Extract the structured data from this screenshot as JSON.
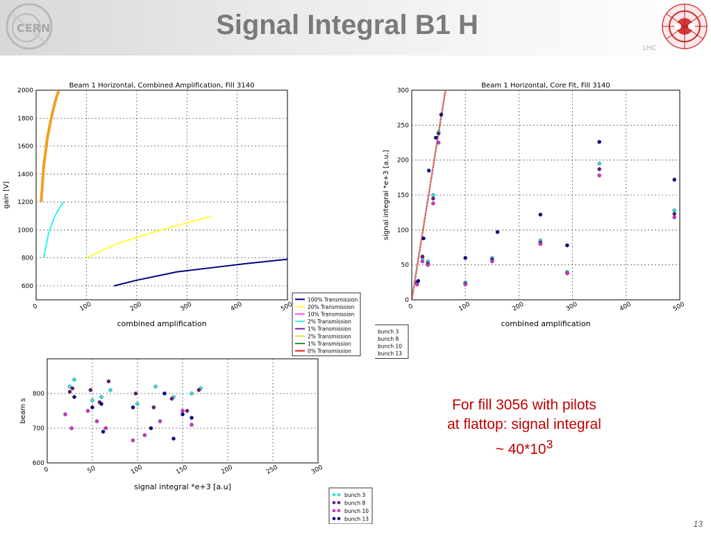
{
  "slide": {
    "title": "Signal Integral B1 H",
    "lhc_label": "LHC",
    "note_lines": [
      "For fill 3056 with pilots",
      "at flattop: signal integral"
    ],
    "note_value_prefix": "~ 40*10",
    "note_value_exponent": "3",
    "page_number": "13"
  },
  "chart_data": [
    {
      "type": "line",
      "title": "Beam 1 Horizontal, Combined Amplification, Fill 3140",
      "xlabel": "combined amplification",
      "ylabel": "gain [V]",
      "xlim": [
        0,
        500
      ],
      "ylim": [
        500,
        2000
      ],
      "xticks": [
        "0",
        "100",
        "200",
        "300",
        "400",
        "500"
      ],
      "yticks": [
        "2000",
        "1800",
        "1600",
        "1400",
        "1200",
        "1000",
        "800",
        "600"
      ],
      "grid": true,
      "legend_position": "outside-bottom-right",
      "series": [
        {
          "name": "100% Transmission",
          "color": "#000080",
          "x": [
            155,
            200,
            280,
            350,
            420,
            500
          ],
          "y": [
            600,
            640,
            700,
            730,
            760,
            790
          ]
        },
        {
          "name": "20% Transmission",
          "color": "#ffff33",
          "x": [
            100,
            160,
            230,
            290,
            350
          ],
          "y": [
            800,
            900,
            980,
            1040,
            1100
          ]
        },
        {
          "name": "10% Transmission",
          "color": "#ff44ff",
          "x": [],
          "y": []
        },
        {
          "name": "2% Transmission",
          "color": "#33eeee",
          "x": [
            15,
            25,
            35,
            45,
            55
          ],
          "y": [
            800,
            980,
            1080,
            1150,
            1200
          ]
        },
        {
          "name": "1% Transmission",
          "color": "#7a1fa2",
          "x": [],
          "y": []
        },
        {
          "name": "2% Transmission",
          "color": "#e2e24a",
          "x": [],
          "y": []
        },
        {
          "name": "1% Transmission",
          "color": "#2e8b2e",
          "x": [],
          "y": []
        },
        {
          "name": "0% Transmission",
          "color": "#ff1010",
          "x": [],
          "y": []
        },
        {
          "name": "",
          "color": "#f0a020",
          "x": [
            10,
            15,
            22,
            30,
            38,
            45
          ],
          "y": [
            1200,
            1450,
            1650,
            1800,
            1920,
            2000
          ]
        }
      ]
    },
    {
      "type": "scatter",
      "title": "Beam 1 Horizontal, Core Fit, Fill 3140",
      "xlabel": "combined amplification",
      "ylabel": "signal integral *e+3 [a.u.]",
      "xlim": [
        0,
        500
      ],
      "ylim": [
        0,
        300
      ],
      "xticks": [
        "0",
        "100",
        "200",
        "300",
        "400",
        "500"
      ],
      "yticks": [
        "300",
        "250",
        "200",
        "150",
        "100",
        "50",
        "0"
      ],
      "grid": true,
      "legend_position": "outside-bottom-left",
      "fit_line": {
        "color": "#b22222",
        "x": [
          0,
          65
        ],
        "y": [
          0,
          310
        ]
      },
      "series": [
        {
          "name": "bunch 3",
          "color": "#33dddd",
          "x": [
            10,
            20,
            30,
            40,
            50,
            100,
            150,
            240,
            290,
            350,
            490
          ],
          "y": [
            25,
            60,
            55,
            150,
            240,
            25,
            60,
            85,
            40,
            195,
            128
          ]
        },
        {
          "name": "bunch 8",
          "color": "#6a1b7a",
          "x": [
            10,
            20,
            30,
            40,
            50,
            100,
            150,
            240,
            290,
            350,
            490
          ],
          "y": [
            25,
            62,
            52,
            145,
            238,
            23,
            58,
            82,
            38,
            187,
            123
          ]
        },
        {
          "name": "bunch 10",
          "color": "#cc33cc",
          "x": [
            10,
            20,
            30,
            40,
            50,
            100,
            150,
            240,
            290,
            350,
            490
          ],
          "y": [
            22,
            55,
            50,
            138,
            225,
            22,
            55,
            80,
            38,
            178,
            118
          ]
        },
        {
          "name": "bunch 13",
          "color": "#00008b",
          "x": [
            12,
            22,
            32,
            45,
            55,
            100,
            160,
            240,
            290,
            350,
            490
          ],
          "y": [
            27,
            88,
            185,
            232,
            265,
            60,
            97,
            122,
            78,
            226,
            172
          ]
        }
      ]
    },
    {
      "type": "scatter",
      "title": "",
      "xlabel": "signal integral *e+3 [a.u]",
      "ylabel": "beam s",
      "xlim": [
        0,
        300
      ],
      "ylim": [
        600,
        900
      ],
      "xticks": [
        "0",
        "50",
        "100",
        "150",
        "200",
        "250",
        "300"
      ],
      "yticks": [
        "800",
        "700",
        "600"
      ],
      "grid": true,
      "legend_position": "outside-bottom-left",
      "series": [
        {
          "name": "bunch 3",
          "color": "#33dddd",
          "x": [
            25,
            30,
            50,
            60,
            70,
            100,
            120,
            140,
            160,
            170
          ],
          "y": [
            820,
            840,
            780,
            790,
            810,
            770,
            820,
            790,
            800,
            815
          ]
        },
        {
          "name": "bunch 8",
          "color": "#6a1b7a",
          "x": [
            25,
            28,
            48,
            58,
            68,
            98,
            118,
            138,
            155,
            168
          ],
          "y": [
            805,
            815,
            810,
            775,
            835,
            800,
            760,
            785,
            750,
            810
          ]
        },
        {
          "name": "bunch 10",
          "color": "#cc33cc",
          "x": [
            20,
            27,
            45,
            55,
            65,
            95,
            108,
            125,
            150,
            160
          ],
          "y": [
            740,
            700,
            750,
            720,
            700,
            665,
            680,
            720,
            750,
            710
          ]
        },
        {
          "name": "bunch 13",
          "color": "#00008b",
          "x": [
            30,
            50,
            60,
            62,
            95,
            115,
            130,
            140,
            150,
            160
          ],
          "y": [
            790,
            760,
            770,
            690,
            760,
            700,
            800,
            670,
            740,
            730
          ]
        }
      ]
    }
  ]
}
